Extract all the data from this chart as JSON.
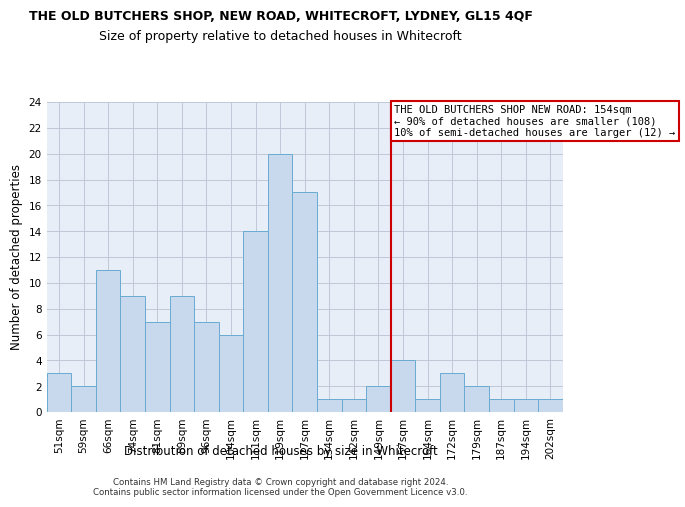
{
  "title": "THE OLD BUTCHERS SHOP, NEW ROAD, WHITECROFT, LYDNEY, GL15 4QF",
  "subtitle": "Size of property relative to detached houses in Whitecroft",
  "xlabel": "Distribution of detached houses by size in Whitecroft",
  "ylabel": "Number of detached properties",
  "categories": [
    "51sqm",
    "59sqm",
    "66sqm",
    "74sqm",
    "81sqm",
    "89sqm",
    "96sqm",
    "104sqm",
    "111sqm",
    "119sqm",
    "127sqm",
    "134sqm",
    "142sqm",
    "149sqm",
    "157sqm",
    "164sqm",
    "172sqm",
    "179sqm",
    "187sqm",
    "194sqm",
    "202sqm"
  ],
  "values": [
    3,
    2,
    11,
    9,
    7,
    9,
    7,
    6,
    14,
    20,
    17,
    1,
    1,
    2,
    4,
    1,
    3,
    2,
    1,
    1,
    1
  ],
  "bar_color": "#c8d9ee",
  "bar_edge_color": "#6aabd2",
  "vline_index": 14,
  "vline_color": "#cc0000",
  "annotation_line1": "THE OLD BUTCHERS SHOP NEW ROAD: 154sqm",
  "annotation_line2": "← 90% of detached houses are smaller (108)",
  "annotation_line3": "10% of semi-detached houses are larger (12) →",
  "annotation_box_color": "#cc0000",
  "ylim": [
    0,
    24
  ],
  "yticks": [
    0,
    2,
    4,
    6,
    8,
    10,
    12,
    14,
    16,
    18,
    20,
    22,
    24
  ],
  "grid_color": "#c0c8d8",
  "background_color": "#e8eef8",
  "footer": "Contains HM Land Registry data © Crown copyright and database right 2024.\nContains public sector information licensed under the Open Government Licence v3.0.",
  "title_fontsize": 9,
  "subtitle_fontsize": 9,
  "xlabel_fontsize": 8.5,
  "ylabel_fontsize": 8.5,
  "tick_fontsize": 7.5,
  "annotation_fontsize": 7.5
}
